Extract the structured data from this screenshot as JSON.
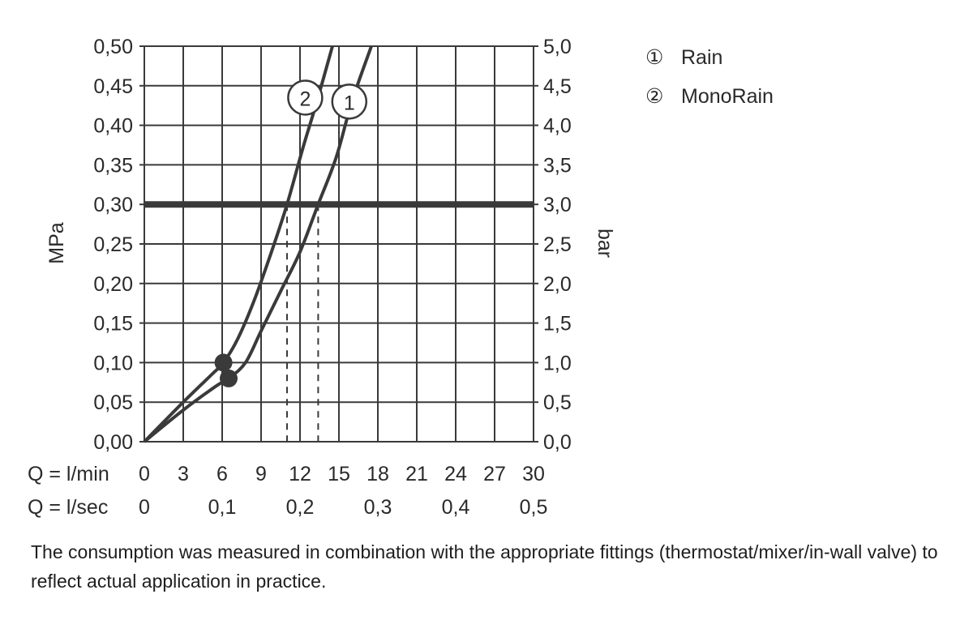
{
  "chart_data": {
    "type": "line",
    "title": "",
    "ylabel_left": "MPa",
    "ylabel_right": "bar",
    "x_axis_rows": [
      {
        "label": "Q = l/min",
        "ticks": [
          "0",
          "3",
          "6",
          "9",
          "12",
          "15",
          "18",
          "21",
          "24",
          "27",
          "30"
        ],
        "values": [
          0,
          3,
          6,
          9,
          12,
          15,
          18,
          21,
          24,
          27,
          30
        ]
      },
      {
        "label": "Q = l/sec",
        "ticks": [
          "0",
          "0,1",
          "0,2",
          "0,3",
          "0,4",
          "0,5"
        ],
        "values": [
          0,
          6,
          12,
          18,
          24,
          30
        ]
      }
    ],
    "xlim": [
      0,
      30
    ],
    "ylim_left": [
      0,
      0.5
    ],
    "yticks_left": [
      "0,00",
      "0,05",
      "0,10",
      "0,15",
      "0,20",
      "0,25",
      "0,30",
      "0,35",
      "0,40",
      "0,45",
      "0,50"
    ],
    "yticks_right": [
      "0,0",
      "0,5",
      "1,0",
      "1,5",
      "2,0",
      "2,5",
      "3,0",
      "3,5",
      "4,0",
      "4,5",
      "5,0"
    ],
    "grid": true,
    "reference_line": {
      "y": 0.3
    },
    "series": [
      {
        "name": "Rain",
        "marker": "1",
        "points": [
          [
            0,
            0
          ],
          [
            3,
            0.04
          ],
          [
            5.5,
            0.07
          ],
          [
            6.5,
            0.08
          ],
          [
            7.8,
            0.1
          ],
          [
            9,
            0.14
          ],
          [
            10.5,
            0.19
          ],
          [
            12,
            0.24
          ],
          [
            13.4,
            0.3
          ],
          [
            14.8,
            0.36
          ],
          [
            16,
            0.43
          ],
          [
            17.5,
            0.5
          ]
        ],
        "dot": [
          6.5,
          0.08
        ],
        "reference_x": 13.4
      },
      {
        "name": "MonoRain",
        "marker": "2",
        "points": [
          [
            0,
            0
          ],
          [
            3,
            0.05
          ],
          [
            5.2,
            0.085
          ],
          [
            6.1,
            0.1
          ],
          [
            7.2,
            0.13
          ],
          [
            8.5,
            0.18
          ],
          [
            9.8,
            0.24
          ],
          [
            11,
            0.3
          ],
          [
            12.2,
            0.37
          ],
          [
            13.3,
            0.43
          ],
          [
            14.5,
            0.5
          ]
        ],
        "dot": [
          6.1,
          0.1
        ],
        "reference_x": 11.0
      }
    ],
    "legend": [
      {
        "symbol": "①",
        "name": "Rain"
      },
      {
        "symbol": "②",
        "name": "MonoRain"
      }
    ],
    "legend_position": "top-right"
  },
  "note": "The consumption was measured in combination with the appropriate fittings (thermostat/mixer/in-wall valve) to reflect actual application in practice.",
  "colors": {
    "line": "#3a3a3a",
    "grid": "#3a3a3a",
    "reference": "#3a3a3a",
    "text": "#2a2a2a"
  }
}
